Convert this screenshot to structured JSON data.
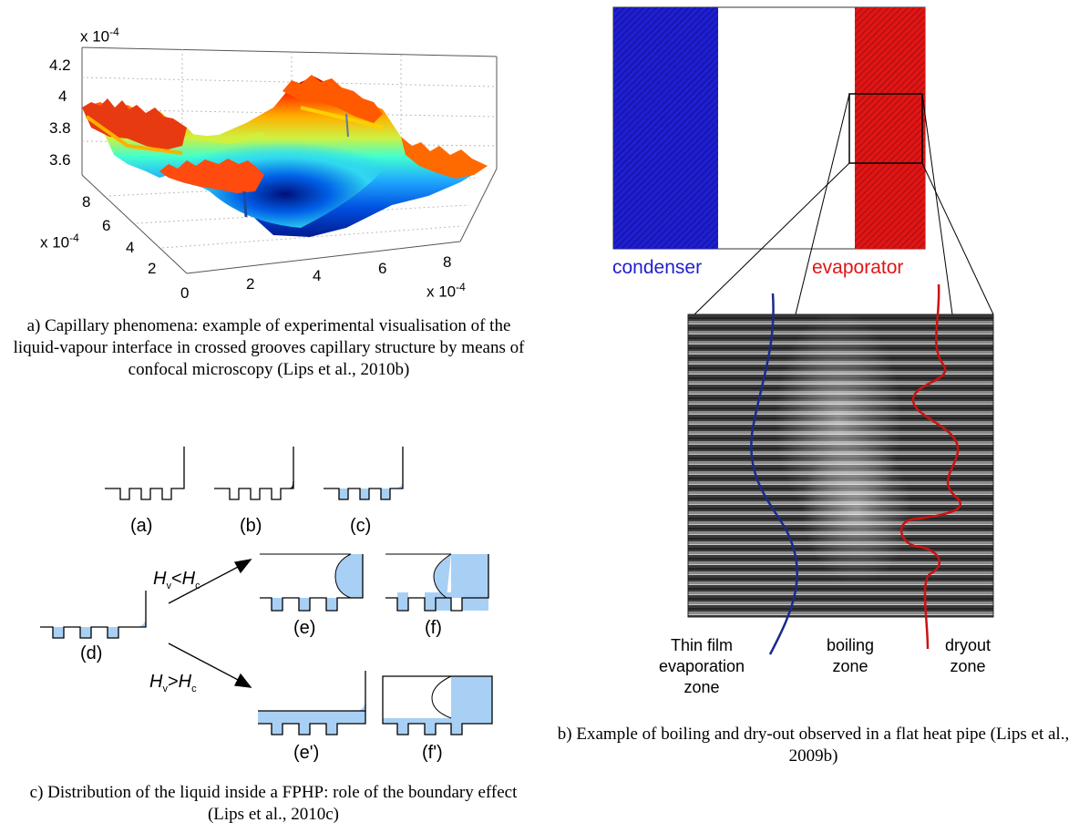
{
  "panel_a": {
    "caption": "a) Capillary phenomena: example of experimental visualisation of the liquid-vapour interface in crossed grooves capillary structure by means of confocal microscopy (Lips et al., 2010b)",
    "z_ticks": [
      "4.2",
      "4",
      "3.8",
      "3.6"
    ],
    "y_ticks": [
      "8",
      "6",
      "4",
      "2"
    ],
    "x_ticks": [
      "0",
      "2",
      "4",
      "6",
      "8"
    ],
    "mult_base": "x 10",
    "mult_exp": "-4"
  },
  "panel_b": {
    "caption": "b) Example of boiling and dry-out observed in a flat heat pipe (Lips et al., 2009b)",
    "condenser_label": "condenser",
    "evaporator_label": "evaporator",
    "zone_thin_film": "Thin film evaporation zone",
    "zone_boiling": "boiling zone",
    "zone_dryout": "dryout zone",
    "colors": {
      "condenser": "#1f1fd0",
      "evaporator": "#e01515",
      "thin_film_curve": "#1a2a8a",
      "dryout_curve": "#cc1111"
    }
  },
  "panel_c": {
    "caption": "c) Distribution of the liquid inside a FPHP: role of the boundary effect (Lips et al., 2010c)",
    "labels": [
      "(a)",
      "(b)",
      "(c)",
      "(d)",
      "(e)",
      "(f)",
      "(e')",
      "(f')"
    ],
    "cond_less": {
      "left": "H",
      "left_sub": "v",
      "op": "<",
      "right": "H",
      "right_sub": "c"
    },
    "cond_greater": {
      "left": "H",
      "left_sub": "v",
      "op": ">",
      "right": "H",
      "right_sub": "c"
    },
    "liquid_color": "#a8d0f5"
  }
}
